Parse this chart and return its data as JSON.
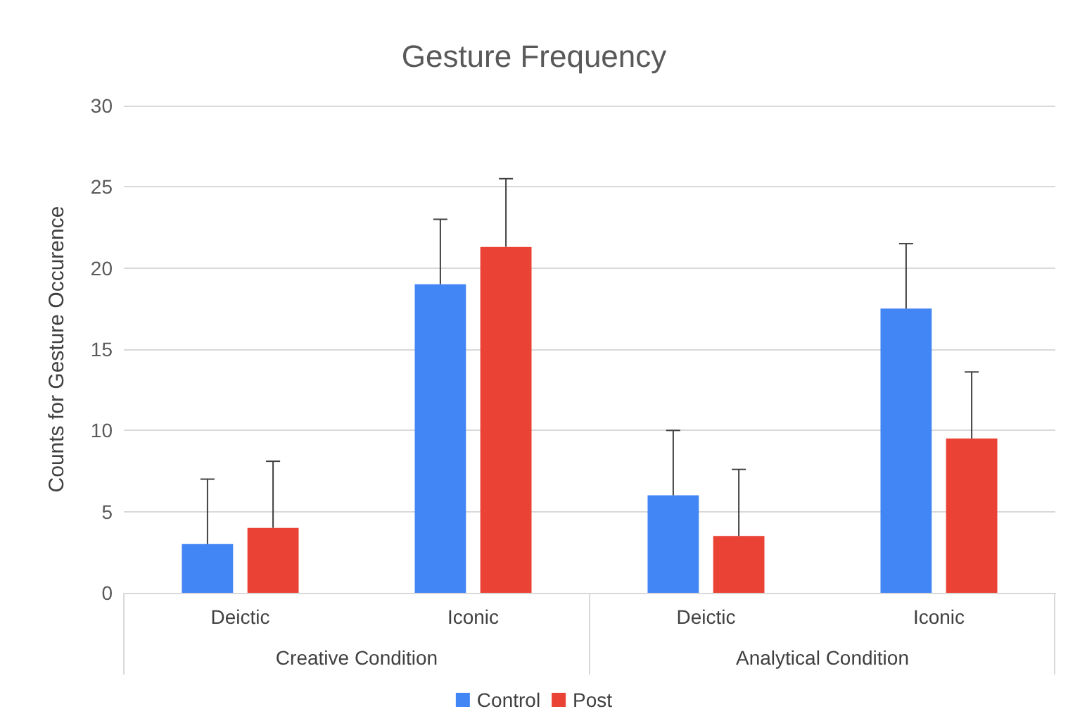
{
  "chart_data": {
    "type": "bar",
    "title": "Gesture Frequency",
    "ylabel": "Counts for Gesture Occurence",
    "categories": [
      "Deictic",
      "Iconic",
      "Deictic",
      "Iconic"
    ],
    "annotations": [
      "Creative Condition",
      "Analytical Condition"
    ],
    "series": [
      {
        "name": "Control",
        "color": "#4285f4",
        "values": [
          3,
          19,
          6,
          17.5
        ],
        "errors": [
          [
            3,
            7
          ],
          [
            19,
            23
          ],
          [
            6,
            10
          ],
          [
            17.5,
            21.5
          ]
        ]
      },
      {
        "name": "Post",
        "color": "#ea4335",
        "values": [
          4,
          21.3,
          3.5,
          9.5
        ],
        "errors": [
          [
            4,
            8.1
          ],
          [
            21.3,
            25.5
          ],
          [
            3.5,
            7.6
          ],
          [
            9.5,
            13.6
          ]
        ]
      }
    ],
    "ylim": [
      0,
      30
    ],
    "yticks": [
      0,
      5,
      10,
      15,
      20,
      25,
      30
    ],
    "grid": "y",
    "legend": "bottom"
  }
}
